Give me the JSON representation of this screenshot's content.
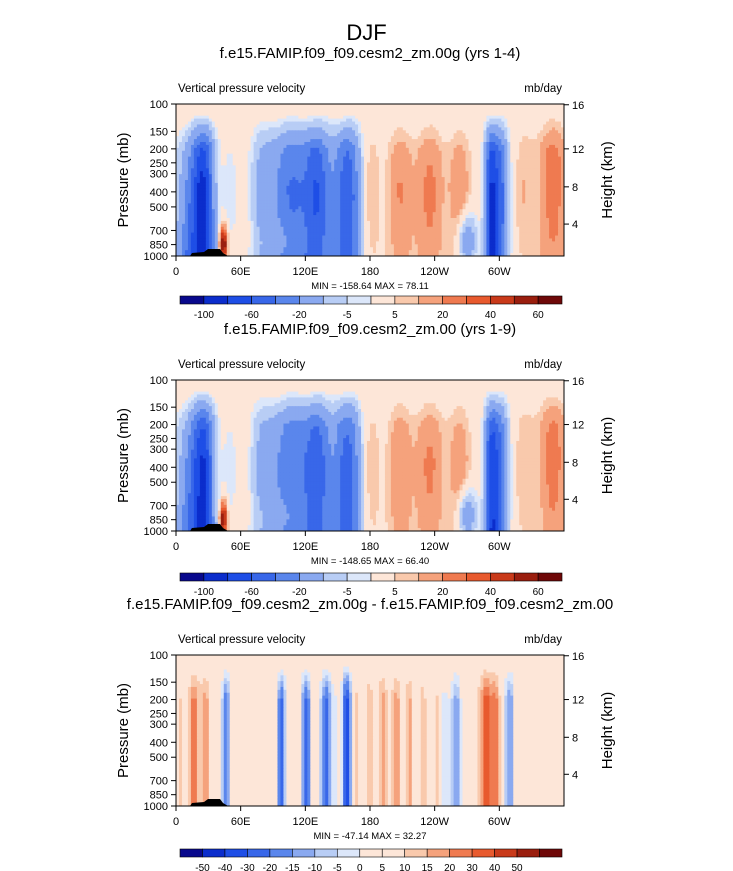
{
  "title": "DJF",
  "colors": {
    "cmap": [
      "#08088c",
      "#0b2dcc",
      "#1e4ee6",
      "#3867e9",
      "#5a86ec",
      "#8aa9f0",
      "#b8cdf5",
      "#dce7fa",
      "#fde6d8",
      "#f9c9ac",
      "#f5a27c",
      "#ef7a50",
      "#e85a2e",
      "#c93a1a",
      "#9a1e0e",
      "#6e0808"
    ]
  },
  "chart_data": [
    {
      "type": "heatmap",
      "title": "f.e15.FAMIP.f09_f09.cesm2_zm.00g (yrs 1-4)",
      "left_label": "Vertical pressure velocity",
      "units": "mb/day",
      "ylabel": "Pressure (mb)",
      "ylabel_right": "Height (km)",
      "yticks": [
        100,
        150,
        200,
        250,
        300,
        400,
        500,
        700,
        850,
        1000
      ],
      "yticks_right": [
        4,
        8,
        12,
        16
      ],
      "xticks": [
        "0",
        "60E",
        "120E",
        "180",
        "120W",
        "60W"
      ],
      "stats": "MIN = -158.64  MAX = 78.11",
      "colorbar_labels": [
        "-100",
        "-60",
        "-20",
        "-5",
        "5",
        "20",
        "40",
        "60"
      ],
      "min": -158.64,
      "max": 78.11
    },
    {
      "type": "heatmap",
      "title": "f.e15.FAMIP.f09_f09.cesm2_zm.00 (yrs 1-9)",
      "left_label": "Vertical pressure velocity",
      "units": "mb/day",
      "ylabel": "Pressure (mb)",
      "ylabel_right": "Height (km)",
      "yticks": [
        100,
        150,
        200,
        250,
        300,
        400,
        500,
        700,
        850,
        1000
      ],
      "yticks_right": [
        4,
        8,
        12,
        16
      ],
      "xticks": [
        "0",
        "60E",
        "120E",
        "180",
        "120W",
        "60W"
      ],
      "stats": "MIN = -148.65  MAX = 66.40",
      "colorbar_labels": [
        "-100",
        "-60",
        "-20",
        "-5",
        "5",
        "20",
        "40",
        "60"
      ],
      "min": -148.65,
      "max": 66.4
    },
    {
      "type": "heatmap",
      "title": "f.e15.FAMIP.f09_f09.cesm2_zm.00g - f.e15.FAMIP.f09_f09.cesm2_zm.00",
      "left_label": "Vertical pressure velocity",
      "units": "mb/day",
      "ylabel": "Pressure (mb)",
      "ylabel_right": "Height (km)",
      "yticks": [
        100,
        150,
        200,
        250,
        300,
        400,
        500,
        700,
        850,
        1000
      ],
      "yticks_right": [
        4,
        8,
        12,
        16
      ],
      "xticks": [
        "0",
        "60E",
        "120E",
        "180",
        "120W",
        "60W"
      ],
      "stats": "MIN = -47.14  MAX = 32.27",
      "colorbar_labels": [
        "-50",
        "-40",
        "-30",
        "-20",
        "-15",
        "-10",
        "-5",
        "0",
        "5",
        "10",
        "15",
        "20",
        "30",
        "40",
        "50"
      ],
      "min": -47.14,
      "max": 32.27
    }
  ]
}
